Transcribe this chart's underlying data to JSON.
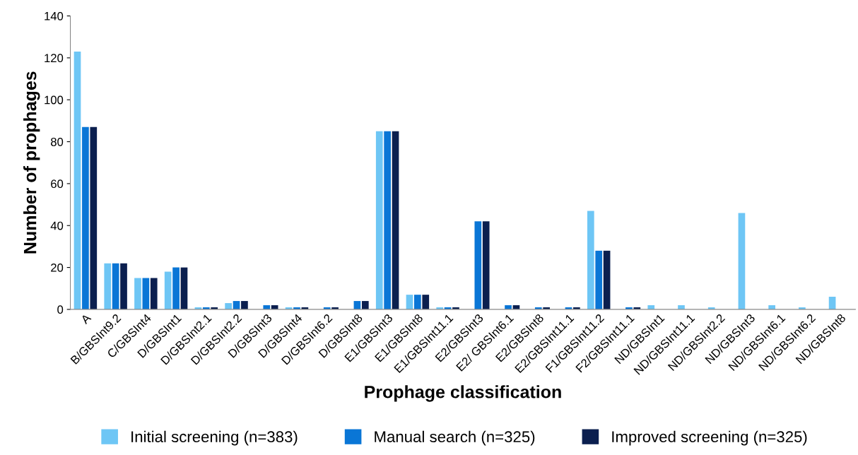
{
  "chart_data": {
    "type": "bar",
    "xlabel": "Prophage classification",
    "ylabel": "Number of prophages",
    "categories": [
      "A",
      "B/GBSInt9.2",
      "C/GBSInt4",
      "D/GBSInt1",
      "D/GBSInt2.1",
      "D/GBSInt2.2",
      "D/GBSInt3",
      "D/GBSInt4",
      "D/GBSInt6.2",
      "D/GBSInt8",
      "E1/GBSInt3",
      "E1/GBSInt8",
      "E1/GBSInt11.1",
      "E2/GBSInt3",
      "E2/ GBSInt6.1",
      "E2/GBSInt8",
      "E2/GBSInt11.1",
      "F1/GBSInt11.2",
      "F2/GBSInt11.1",
      "ND/GBSInt1",
      "ND/GBSInt11.1",
      "ND/GBSInt2.2",
      "ND/GBSInt3",
      "ND/GBSInt6.1",
      "ND/GBSInt6.2",
      "ND/GBSInt8"
    ],
    "series": [
      {
        "name": "Initial screening (n=383)",
        "color": "#6ec6f5",
        "values": [
          123,
          22,
          15,
          18,
          1,
          3,
          0,
          1,
          0,
          0,
          85,
          7,
          1,
          0,
          0,
          0,
          0,
          47,
          0,
          2,
          2,
          1,
          46,
          2,
          1,
          6
        ]
      },
      {
        "name": "Manual search (n=325)",
        "color": "#0a76d6",
        "values": [
          87,
          22,
          15,
          20,
          1,
          4,
          2,
          1,
          1,
          4,
          85,
          7,
          1,
          42,
          2,
          1,
          1,
          28,
          1,
          0,
          0,
          0,
          0,
          0,
          0,
          0
        ]
      },
      {
        "name": "Improved screening (n=325)",
        "color": "#0b1f4f",
        "values": [
          87,
          22,
          15,
          20,
          1,
          4,
          2,
          1,
          1,
          4,
          85,
          7,
          1,
          42,
          2,
          1,
          1,
          28,
          1,
          0,
          0,
          0,
          0,
          0,
          0,
          0
        ]
      }
    ],
    "ylim": [
      0,
      140
    ],
    "yticks": [
      0,
      20,
      40,
      60,
      80,
      100,
      120,
      140
    ],
    "grid": false,
    "legend": "bottom"
  }
}
